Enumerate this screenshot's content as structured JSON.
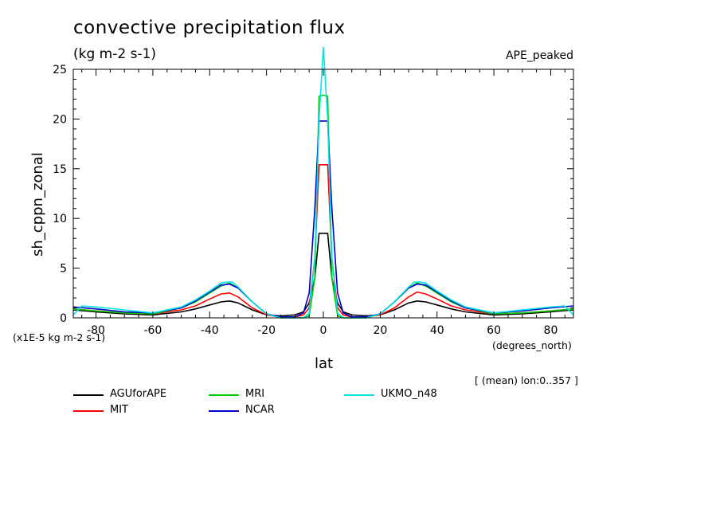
{
  "title": "convective precipitation flux",
  "units": "(kg m-2 s-1)",
  "tag": "APE_peaked",
  "scale_note": "(x1E-5 kg m-2 s-1)",
  "x_units": "(degrees_north)",
  "footer_note": "[ (mean) lon:0..357 ]",
  "chart_data": {
    "type": "line",
    "title": "convective precipitation flux",
    "xlabel": "lat",
    "ylabel": "sh_cppn_zonal",
    "xlim": [
      -88,
      88
    ],
    "ylim": [
      0,
      25
    ],
    "x_ticks": [
      -80,
      -60,
      -40,
      -20,
      0,
      20,
      40,
      60,
      80
    ],
    "y_ticks": [
      0,
      5,
      10,
      15,
      20,
      25
    ],
    "legend_position": "below",
    "grid": false,
    "series": [
      {
        "name": "AGUforAPE",
        "color": "#000000",
        "x": [
          -88,
          -80,
          -70,
          -60,
          -50,
          -45,
          -40,
          -36,
          -33,
          -30,
          -25,
          -20,
          -15,
          -10,
          -7,
          -5,
          -3,
          -1.5,
          0,
          1.5,
          3,
          5,
          7,
          10,
          15,
          20,
          25,
          30,
          33,
          36,
          40,
          45,
          50,
          60,
          70,
          80,
          88
        ],
        "y": [
          0.8,
          0.6,
          0.4,
          0.3,
          0.6,
          0.9,
          1.3,
          1.6,
          1.7,
          1.5,
          0.8,
          0.3,
          0.2,
          0.3,
          0.6,
          1.5,
          4.0,
          8.5,
          8.5,
          8.5,
          4.0,
          1.5,
          0.6,
          0.3,
          0.2,
          0.3,
          0.8,
          1.5,
          1.7,
          1.6,
          1.3,
          0.9,
          0.6,
          0.3,
          0.4,
          0.6,
          0.8
        ]
      },
      {
        "name": "MIT",
        "color": "#ff0000",
        "x": [
          -88,
          -80,
          -70,
          -60,
          -50,
          -45,
          -40,
          -36,
          -33,
          -30,
          -25,
          -20,
          -15,
          -10,
          -7,
          -5,
          -3,
          -1.5,
          0,
          1.5,
          3,
          5,
          7,
          10,
          15,
          20,
          25,
          30,
          33,
          36,
          40,
          45,
          50,
          60,
          70,
          80,
          88
        ],
        "y": [
          0.9,
          0.7,
          0.5,
          0.4,
          0.8,
          1.2,
          1.9,
          2.4,
          2.5,
          2.1,
          1.0,
          0.3,
          0.1,
          0.1,
          0.3,
          1.0,
          6.0,
          15.4,
          15.4,
          15.4,
          6.0,
          1.0,
          0.3,
          0.1,
          0.1,
          0.3,
          1.0,
          2.1,
          2.6,
          2.4,
          1.9,
          1.2,
          0.8,
          0.4,
          0.5,
          0.7,
          0.9
        ]
      },
      {
        "name": "MRI",
        "color": "#00cc00",
        "x": [
          -88,
          -80,
          -70,
          -60,
          -50,
          -45,
          -40,
          -36,
          -33,
          -30,
          -25,
          -20,
          -15,
          -10,
          -7,
          -5,
          -3,
          -1.5,
          0,
          1.5,
          3,
          5,
          7,
          10,
          15,
          20,
          25,
          30,
          33,
          36,
          40,
          45,
          50,
          60,
          70,
          80,
          88
        ],
        "y": [
          0.9,
          0.7,
          0.5,
          0.4,
          1.0,
          1.6,
          2.5,
          3.2,
          3.5,
          3.0,
          1.6,
          0.4,
          0.0,
          0.0,
          0.0,
          0.2,
          4.0,
          22.3,
          22.4,
          22.3,
          4.0,
          0.2,
          0.0,
          0.0,
          0.0,
          0.4,
          1.6,
          3.0,
          3.5,
          3.2,
          2.5,
          1.6,
          1.0,
          0.4,
          0.5,
          0.7,
          0.9
        ]
      },
      {
        "name": "NCAR",
        "color": "#0000cc",
        "x": [
          -88,
          -80,
          -70,
          -60,
          -50,
          -45,
          -40,
          -36,
          -33,
          -30,
          -25,
          -20,
          -15,
          -10,
          -7,
          -5,
          -3,
          -1.5,
          0,
          1.5,
          3,
          5,
          7,
          10,
          15,
          20,
          25,
          30,
          33,
          36,
          40,
          45,
          50,
          60,
          70,
          80,
          88
        ],
        "y": [
          1.1,
          0.9,
          0.6,
          0.5,
          1.0,
          1.7,
          2.6,
          3.3,
          3.4,
          3.0,
          1.6,
          0.4,
          0.1,
          0.1,
          0.5,
          2.5,
          11.0,
          19.8,
          19.8,
          19.8,
          11.0,
          2.5,
          0.5,
          0.1,
          0.1,
          0.4,
          1.6,
          3.0,
          3.4,
          3.3,
          2.6,
          1.7,
          1.0,
          0.5,
          0.7,
          1.0,
          1.2
        ]
      },
      {
        "name": "UKMO_n48",
        "color": "#00e5e5",
        "x": [
          -88,
          -85,
          -80,
          -70,
          -60,
          -50,
          -45,
          -40,
          -36,
          -34,
          -32,
          -30,
          -25,
          -20,
          -15,
          -10,
          -7,
          -5,
          -3,
          -1.5,
          0,
          1.5,
          3,
          5,
          7,
          10,
          15,
          20,
          25,
          30,
          32,
          34,
          36,
          40,
          45,
          50,
          60,
          70,
          80,
          85,
          88
        ],
        "y": [
          0.3,
          1.2,
          1.1,
          0.8,
          0.5,
          1.1,
          1.8,
          2.7,
          3.5,
          3.6,
          3.6,
          3.1,
          1.6,
          0.4,
          0.0,
          0.0,
          0.0,
          0.5,
          6.0,
          20.0,
          27.8,
          20.0,
          6.0,
          0.5,
          0.0,
          0.0,
          0.0,
          0.4,
          1.6,
          3.1,
          3.6,
          3.6,
          3.5,
          2.7,
          1.8,
          1.1,
          0.5,
          0.8,
          1.1,
          1.2,
          0.3
        ]
      }
    ]
  }
}
